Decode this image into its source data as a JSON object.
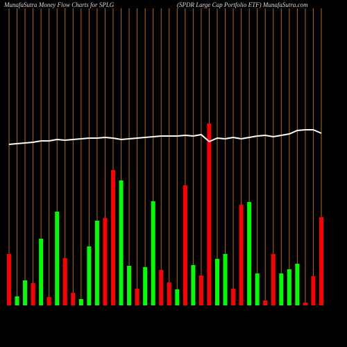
{
  "chart_data": {
    "type": "bar",
    "title": "MunafaSutra  Money Flow  Charts for SPLG",
    "subtitle": "(SPDR Large    Cap Portfolio  ETF) MunafaSutra.com",
    "categories": [
      null,
      null,
      null,
      null,
      null,
      null,
      null,
      null,
      null,
      null,
      null,
      null,
      null,
      null,
      null,
      null,
      null,
      null,
      null,
      null,
      null,
      null,
      null,
      null,
      null,
      null,
      null,
      null,
      null,
      null,
      null,
      null,
      null,
      null,
      null,
      null,
      null,
      null,
      null,
      null
    ],
    "values": [
      74,
      13,
      36,
      32,
      96,
      12,
      135,
      68,
      18,
      9,
      85,
      122,
      126,
      195,
      180,
      57,
      24,
      55,
      150,
      51,
      33,
      23,
      173,
      58,
      43,
      262,
      67,
      74,
      24,
      145,
      149,
      46,
      7,
      74,
      46,
      52,
      60,
      4,
      42,
      127
    ],
    "bar_colors": [
      "#ff0000",
      "#00ff00",
      "#00ff00",
      "#ff0000",
      "#00ff00",
      "#ff0000",
      "#00ff00",
      "#ff0000",
      "#ff0000",
      "#00ff00",
      "#00ff00",
      "#00ff00",
      "#ff0000",
      "#ff0000",
      "#00ff00",
      "#00ff00",
      "#ff0000",
      "#00ff00",
      "#00ff00",
      "#ff0000",
      "#ff0000",
      "#00ff00",
      "#ff0000",
      "#00ff00",
      "#ff0000",
      "#ff0000",
      "#00ff00",
      "#00ff00",
      "#ff0000",
      "#ff0000",
      "#00ff00",
      "#00ff00",
      "#ff0000",
      "#ff0000",
      "#00ff00",
      "#00ff00",
      "#00ff00",
      "#ff0000",
      "#ff0000",
      "#ff0000"
    ],
    "line": {
      "color": "#ffffff",
      "values": [
        232,
        233,
        234,
        235,
        237,
        237,
        239,
        238,
        239,
        240,
        241,
        241,
        242,
        241,
        239,
        240,
        241,
        242,
        243,
        244,
        244,
        244,
        245,
        244,
        246,
        236,
        241,
        240,
        242,
        240,
        242,
        244,
        245,
        243,
        245,
        247,
        252,
        253,
        253,
        248
      ]
    },
    "gridline_color": "#b86b00",
    "ylim": [
      0,
      440
    ]
  }
}
